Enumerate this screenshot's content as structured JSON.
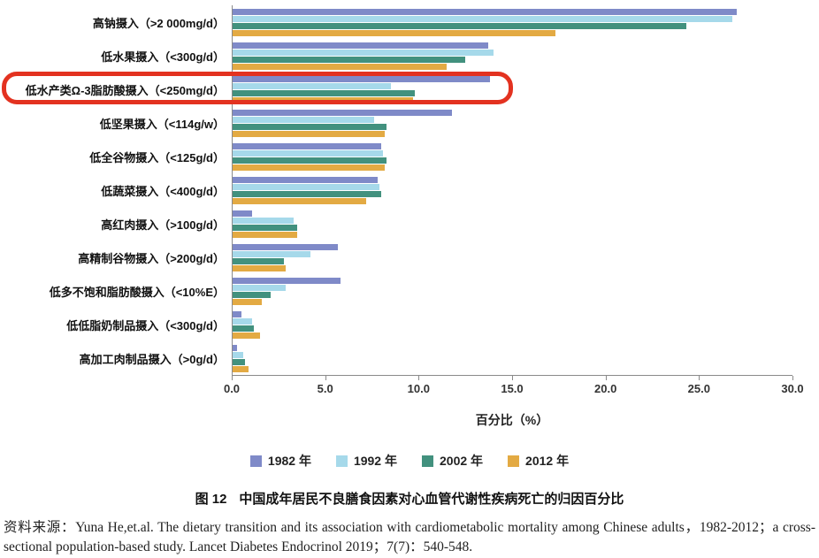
{
  "chart_data": {
    "type": "bar",
    "orientation": "horizontal",
    "xlabel": "百分比（%）",
    "xlim": [
      0,
      30
    ],
    "xticks": [
      "0.0",
      "5.0",
      "10.0",
      "15.0",
      "20.0",
      "25.0",
      "30.0"
    ],
    "grid": false,
    "legend_position": "bottom",
    "categories": [
      "高钠摄入（>2 000mg/d）",
      "低水果摄入（<300g/d）",
      "低水产类Ω-3脂肪酸摄入（<250mg/d）",
      "低坚果摄入（<114g/w）",
      "低全谷物摄入（<125g/d）",
      "低蔬菜摄入（<400g/d）",
      "高红肉摄入（>100g/d）",
      "高精制谷物摄入（>200g/d）",
      "低多不饱和脂肪酸摄入（<10%E）",
      "低低脂奶制品摄入（<300g/d）",
      "高加工肉制品摄入（>0g/d）"
    ],
    "series": [
      {
        "name": "1982 年",
        "color": "#7f8ac8",
        "values": [
          27.0,
          13.7,
          13.8,
          11.8,
          8.0,
          7.8,
          1.1,
          5.7,
          5.8,
          0.5,
          0.3
        ]
      },
      {
        "name": "1992 年",
        "color": "#a6d9ea",
        "values": [
          26.8,
          14.0,
          8.5,
          7.6,
          8.1,
          7.9,
          3.3,
          4.2,
          2.9,
          1.1,
          0.6
        ]
      },
      {
        "name": "2002 年",
        "color": "#42917e",
        "values": [
          24.3,
          12.5,
          9.8,
          8.3,
          8.3,
          8.0,
          3.5,
          2.8,
          2.1,
          1.2,
          0.7
        ]
      },
      {
        "name": "2012 年",
        "color": "#e3aa43",
        "values": [
          17.3,
          11.5,
          9.7,
          8.2,
          8.2,
          7.2,
          3.5,
          2.9,
          1.6,
          1.5,
          0.9
        ]
      }
    ],
    "annotation": {
      "type": "highlight-box",
      "category_index": 2,
      "color": "#e33220"
    }
  },
  "caption": {
    "prefix": "图 12",
    "text": "中国成年居民不良膳食因素对心血管代谢性疾病死亡的归因百分比"
  },
  "source": {
    "text": "资料来源：Yuna He,et.al. The dietary transition and its association with cardiometabolic mortality among Chinese adults，1982-2012；a cross-sectional population-based study. Lancet Diabetes Endocrinol 2019；7(7)：540-548."
  }
}
